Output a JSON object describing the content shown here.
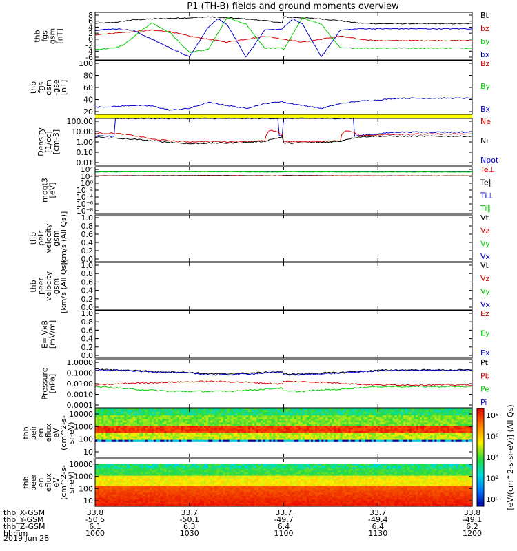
{
  "chart_data": {
    "type": "line",
    "title": "P1 (TH-B) fields and ground moments overview",
    "date": "2019 Jun 28",
    "colors": {
      "black": "#000000",
      "red": "#d40000",
      "green": "#00cc00",
      "blue": "#0000cc",
      "yellow": "#ffff00"
    },
    "panels": [
      {
        "id": "fgs",
        "ylabel": [
          "thb",
          "fgs",
          "gsm",
          "[nT]"
        ],
        "yticks": [
          "8",
          "6",
          "4",
          "2",
          "0",
          "-2",
          "-4",
          "-6"
        ],
        "ylim": [
          -7,
          9
        ],
        "legend": [
          {
            "name": "Bt",
            "color": "black"
          },
          {
            "name": "bz",
            "color": "red"
          },
          {
            "name": "by",
            "color": "green"
          },
          {
            "name": "bx",
            "color": "blue"
          }
        ],
        "series": [
          {
            "name": "Bt",
            "color": "black",
            "x": [
              1000,
              1010,
              1020,
              1030,
              1040,
              1050,
              1100,
              1110,
              1120,
              1130,
              1140,
              1150,
              1200
            ],
            "y": [
              5.3,
              5.6,
              6.5,
              6.8,
              7.0,
              7.2,
              7.5,
              7.2,
              6.8,
              6.2,
              5.4,
              5.2,
              5.2
            ]
          },
          {
            "name": "bz",
            "color": "red",
            "x": [
              1000,
              1010,
              1020,
              1030,
              1040,
              1050,
              1100,
              1110,
              1120,
              1130,
              1140,
              1150,
              1200
            ],
            "y": [
              1.5,
              2.0,
              2.5,
              3.0,
              2.5,
              1.0,
              0.0,
              -1.0,
              0.0,
              1.0,
              0.0,
              -0.5,
              -0.5
            ]
          },
          {
            "name": "by",
            "color": "green",
            "x": [
              1000,
              1010,
              1015,
              1020,
              1030,
              1040,
              1050,
              1100,
              1110,
              1120,
              1130,
              1140,
              1150,
              1200
            ],
            "y": [
              -3.5,
              -3.0,
              -2.0,
              0.5,
              5.5,
              2.0,
              -4.5,
              -3.5,
              7.2,
              5.0,
              -3.0,
              -3.0,
              -3.0,
              -3.0
            ]
          },
          {
            "name": "bx",
            "color": "blue",
            "x": [
              1000,
              1010,
              1020,
              1030,
              1040,
              1050,
              1100,
              1105,
              1110,
              1120,
              1130,
              1140,
              1150,
              1200
            ],
            "y": [
              3.0,
              3.5,
              3.0,
              0.0,
              -3.0,
              -6.0,
              4.0,
              6.8,
              5.0,
              -6.0,
              3.0,
              3.5,
              3.5,
              3.5
            ]
          }
        ]
      },
      {
        "id": "fgs-gse",
        "ylabel": [
          "thb",
          "fgs",
          "gsm",
          "-gse",
          "[nT]"
        ],
        "yticks": [
          "100",
          "80",
          "60",
          "40",
          "20"
        ],
        "ylim": [
          10,
          100
        ],
        "legend": [
          {
            "name": "Bz",
            "color": "red"
          },
          {
            "name": "By",
            "color": "green"
          },
          {
            "name": "Bx",
            "color": "blue"
          }
        ],
        "series": [
          {
            "name": "Bx",
            "color": "blue",
            "x": [
              1000,
              1010,
              1020,
              1030,
              1040,
              1050,
              1100,
              1110,
              1120,
              1130,
              1140,
              1150,
              1200
            ],
            "y": [
              22,
              23,
              25,
              24,
              17,
              20,
              30,
              25,
              20,
              28,
              32,
              34,
              37
            ]
          }
        ],
        "bar": {
          "color": "yellow"
        }
      },
      {
        "id": "density",
        "ylabel": [
          "Density",
          "[1/cc]",
          "[cm-3]"
        ],
        "scale": "log",
        "yticks": [
          "100.00",
          "10.00",
          "1.00",
          "0.10",
          "0.01"
        ],
        "ylim": [
          0.003,
          200
        ],
        "legend": [
          {
            "name": "Ne",
            "color": "red"
          },
          {
            "name": "Ni",
            "color": "black"
          },
          {
            "name": "Npot",
            "color": "blue"
          }
        ],
        "series": [
          {
            "name": "Npot",
            "color": "blue",
            "x": [
              1000,
              1010,
              1010.1,
              1020,
              1030,
              1040,
              1050,
              1100,
              1110,
              1120,
              1130,
              1137,
              1137.1,
              1140,
              1150,
              1200
            ],
            "y": [
              3,
              3,
              200,
              200,
              200,
              200,
              200,
              200,
              200,
              200,
              200,
              200,
              3,
              3.5,
              5,
              8
            ]
          },
          {
            "name": "Ne",
            "color": "red",
            "x": [
              1000,
              1010,
              1020,
              1030,
              1040,
              1050,
              1100,
              1110,
              1120,
              1130,
              1133,
              1140,
              1150,
              1200
            ],
            "y": [
              6,
              6,
              3.5,
              1.5,
              1.0,
              0.8,
              0.9,
              0.8,
              0.9,
              1.0,
              12,
              3.5,
              4,
              5
            ]
          },
          {
            "name": "Ni",
            "color": "black",
            "x": [
              1000,
              1010,
              1020,
              1030,
              1040,
              1050,
              1100,
              1110,
              1120,
              1130,
              1140,
              1150,
              1200
            ],
            "y": [
              2.5,
              1.8,
              1.5,
              1.0,
              0.7,
              0.5,
              0.6,
              0.6,
              0.7,
              0.9,
              2.5,
              3.0,
              3.0
            ]
          }
        ]
      },
      {
        "id": "temp",
        "ylabel": [
          "moqt3",
          "[eV]"
        ],
        "scale": "log",
        "yticks": [
          "10⁴",
          "10²",
          "10⁰",
          "10⁻²",
          "10⁻⁴",
          "10⁻⁶",
          "10⁻⁸"
        ],
        "ylim": [
          1e-09,
          100000.0
        ],
        "legend": [
          {
            "name": "Te⊥",
            "color": "red"
          },
          {
            "name": "Te∥",
            "color": "black"
          },
          {
            "name": "Ti⊥",
            "color": "blue"
          },
          {
            "name": "Ti∥",
            "color": "green"
          }
        ],
        "series": [
          {
            "name": "Ti⊥",
            "color": "blue",
            "x": [
              1000,
              1030,
              1100,
              1130,
              1200
            ],
            "y": [
              3000,
              4000,
              3500,
              3000,
              3000
            ]
          },
          {
            "name": "Ti∥",
            "color": "green",
            "x": [
              1000,
              1030,
              1100,
              1130,
              1200
            ],
            "y": [
              2500,
              3000,
              3000,
              2500,
              2500
            ]
          },
          {
            "name": "Te⊥",
            "color": "red",
            "x": [
              1000,
              1030,
              1100,
              1130,
              1200
            ],
            "y": [
              200,
              220,
              250,
              200,
              200
            ]
          },
          {
            "name": "Te∥",
            "color": "black",
            "x": [
              1000,
              1030,
              1100,
              1130,
              1200
            ],
            "y": [
              180,
              200,
              220,
              180,
              180
            ]
          }
        ]
      },
      {
        "id": "peir-vel",
        "ylabel": [
          "thb",
          "peir",
          "velocity",
          "gsm",
          "[km/s (All Qs)]"
        ],
        "yticks": [
          "1.0",
          "0.8",
          "0.6",
          "0.4",
          "0.2",
          "0.0"
        ],
        "ylim": [
          0,
          1
        ],
        "legend": [
          {
            "name": "Vt",
            "color": "black"
          },
          {
            "name": "Vz",
            "color": "red"
          },
          {
            "name": "Vy",
            "color": "green"
          },
          {
            "name": "Vx",
            "color": "blue"
          }
        ],
        "series": []
      },
      {
        "id": "peer-vel",
        "ylabel": [
          "thb",
          "peer",
          "velocity",
          "gsm",
          "[km/s (All Qs)]"
        ],
        "yticks": [
          "1.0",
          "0.8",
          "0.6",
          "0.4",
          "0.2",
          "0.0"
        ],
        "ylim": [
          0,
          1
        ],
        "legend": [
          {
            "name": "Vt",
            "color": "black"
          },
          {
            "name": "Vz",
            "color": "red"
          },
          {
            "name": "Vy",
            "color": "green"
          },
          {
            "name": "Vx",
            "color": "blue"
          }
        ],
        "series": []
      },
      {
        "id": "efield",
        "ylabel": [
          "E=-VxB",
          "[mV/m]"
        ],
        "yticks": [
          "1.0",
          "0.8",
          "0.6",
          "0.4",
          "0.2",
          "0.0"
        ],
        "ylim": [
          0,
          1
        ],
        "legend": [
          {
            "name": "Ez",
            "color": "red"
          },
          {
            "name": "Ey",
            "color": "green"
          },
          {
            "name": "Ex",
            "color": "blue"
          }
        ],
        "series": []
      },
      {
        "id": "pressure",
        "ylabel": [
          "Pressure",
          "[nPa]"
        ],
        "scale": "log",
        "yticks": [
          "1.0000",
          "0.1000",
          "0.0100",
          "0.0010",
          "0.0001"
        ],
        "ylim": [
          8e-05,
          1.0
        ],
        "legend": [
          {
            "name": "Pt",
            "color": "black"
          },
          {
            "name": "Pb",
            "color": "red"
          },
          {
            "name": "Pe",
            "color": "green"
          },
          {
            "name": "Pi",
            "color": "blue"
          }
        ],
        "series": [
          {
            "name": "Pt",
            "color": "black",
            "x": [
              1000,
              1010,
              1020,
              1030,
              1040,
              1050,
              1100,
              1110,
              1120,
              1130,
              1140,
              1150,
              1200
            ],
            "y": [
              0.15,
              0.13,
              0.12,
              0.1,
              0.09,
              0.08,
              0.06,
              0.06,
              0.07,
              0.08,
              0.1,
              0.12,
              0.13
            ]
          },
          {
            "name": "Pi",
            "color": "blue",
            "x": [
              1000,
              1010,
              1020,
              1030,
              1040,
              1050,
              1100,
              1110,
              1120,
              1130,
              1140,
              1150,
              1200
            ],
            "y": [
              0.13,
              0.12,
              0.11,
              0.09,
              0.08,
              0.07,
              0.05,
              0.05,
              0.06,
              0.07,
              0.09,
              0.11,
              0.12
            ]
          },
          {
            "name": "Pb",
            "color": "red",
            "x": [
              1000,
              1010,
              1020,
              1030,
              1040,
              1050,
              1100,
              1110,
              1120,
              1130,
              1140,
              1150,
              1200
            ],
            "y": [
              0.007,
              0.008,
              0.01,
              0.011,
              0.012,
              0.013,
              0.014,
              0.013,
              0.012,
              0.01,
              0.008,
              0.007,
              0.007
            ]
          },
          {
            "name": "Pe",
            "color": "green",
            "x": [
              1000,
              1010,
              1020,
              1030,
              1040,
              1050,
              1100,
              1110,
              1120,
              1130,
              1140,
              1150,
              1200
            ],
            "y": [
              0.005,
              0.004,
              0.003,
              0.0025,
              0.002,
              0.002,
              0.002,
              0.002,
              0.0025,
              0.003,
              0.004,
              0.005,
              0.005
            ]
          }
        ]
      },
      {
        "id": "peir-spec",
        "type": "heatmap",
        "ylabel": [
          "thb",
          "peir",
          "en",
          "eflux",
          "eV",
          "(cm^2-s-",
          "sr-eV)"
        ],
        "scale": "log",
        "yticks": [
          "10000",
          "1000",
          "100",
          "10"
        ],
        "ylim": [
          5,
          20000
        ]
      },
      {
        "id": "peer-spec",
        "type": "heatmap",
        "ylabel": [
          "thb",
          "peer",
          "en",
          "eflux",
          "eV",
          "(cm^2-s-",
          "sr-eV)"
        ],
        "scale": "log",
        "yticks": [
          "10000",
          "1000",
          "100",
          "10"
        ],
        "ylim": [
          5,
          20000
        ]
      }
    ],
    "colorbar": {
      "ticks": [
        "10⁸",
        "10⁶",
        "10⁴",
        "10²",
        "10⁰"
      ],
      "label": "[eV/(cm^2-s-sr-eV)] (All Qs)"
    },
    "x": {
      "ticks": [
        1000,
        1030,
        1100,
        1130,
        1200
      ],
      "xlim": [
        1000,
        1200
      ],
      "rows": [
        {
          "label": "thb_X-GSM",
          "values": [
            "33.8",
            "33.7",
            "33.7",
            "33.7",
            "33.8"
          ]
        },
        {
          "label": "thb_Y-GSM",
          "values": [
            "-50.5",
            "-50.1",
            "-49.7",
            "-49.4",
            "-49.1"
          ]
        },
        {
          "label": "thb_Z-GSM",
          "values": [
            "6.1",
            "6.3",
            "6.4",
            "6.4",
            "6.2"
          ]
        },
        {
          "label": "hhmm",
          "values": [
            "1000",
            "1030",
            "1100",
            "1130",
            "1200"
          ]
        }
      ]
    }
  }
}
